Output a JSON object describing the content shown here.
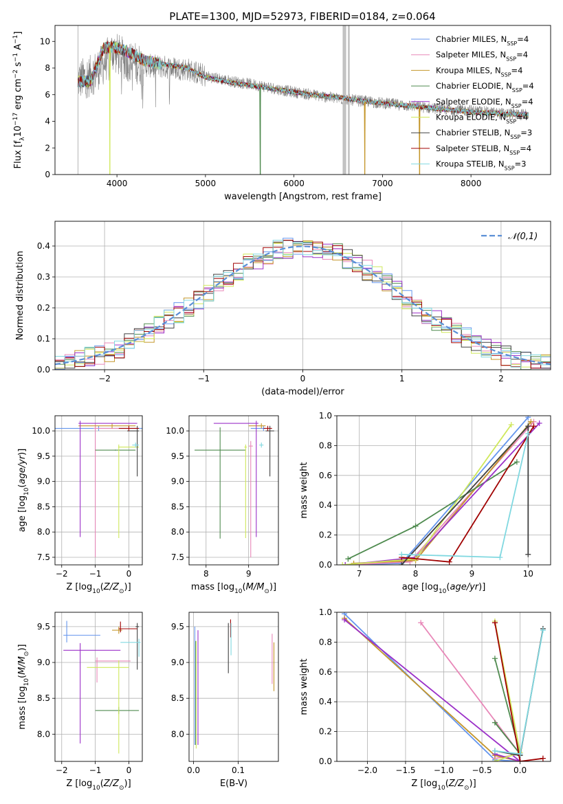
{
  "figure": {
    "title": "PLATE=1300, MJD=52973, FIBERID=0184, z=0.064"
  },
  "colors": {
    "data": "#808080",
    "series": [
      "#6495ed",
      "#e887b8",
      "#c4962a",
      "#4e8a4e",
      "#9b30c8",
      "#cfe85a",
      "#404040",
      "#a00000",
      "#80d8e0"
    ],
    "normal": "#5b8fd6"
  },
  "chart_data": [
    {
      "id": "spectrum",
      "type": "line",
      "xlabel": "wavelength [Angstrom, rest frame]",
      "ylabel": "Flux [f_λ10^-17 erg cm^-2 s^-1 A^-1]",
      "xlim": [
        3300,
        8900
      ],
      "ylim": [
        0,
        11.2
      ],
      "xticks": [
        4000,
        5000,
        6000,
        7000,
        8000
      ],
      "yticks": [
        0,
        2,
        4,
        6,
        8,
        10
      ],
      "grid": false,
      "legend_position": "top-right",
      "legend": [
        {
          "label": "Chabrier MILES, N",
          "sub": "SSP",
          "tail": "=4"
        },
        {
          "label": "Salpeter MILES, N",
          "sub": "SSP",
          "tail": "=4"
        },
        {
          "label": "Kroupa MILES, N",
          "sub": "SSP",
          "tail": "=4"
        },
        {
          "label": "Chabrier ELODIE, N",
          "sub": "SSP",
          "tail": "=4"
        },
        {
          "label": "Salpeter ELODIE, N",
          "sub": "SSP",
          "tail": "=4"
        },
        {
          "label": "Kroupa ELODIE, N",
          "sub": "SSP",
          "tail": "=4"
        },
        {
          "label": "Chabrier STELIB, N",
          "sub": "SSP",
          "tail": "=3"
        },
        {
          "label": "Salpeter STELIB, N",
          "sub": "SSP",
          "tail": "=4"
        },
        {
          "label": "Kroupa STELIB, N",
          "sub": "SSP",
          "tail": "=3"
        }
      ],
      "data_continuum": {
        "x": [
          3560,
          3700,
          3850,
          3950,
          4100,
          4300,
          4500,
          4800,
          5000,
          5300,
          5600,
          5900,
          6200,
          6500,
          6800,
          7100,
          7400,
          7700,
          8000,
          8300,
          8600
        ],
        "y": [
          7.1,
          7.4,
          8.3,
          9.3,
          8.6,
          8.2,
          8.1,
          7.9,
          7.4,
          7.0,
          6.7,
          6.3,
          6.0,
          5.7,
          5.5,
          5.3,
          5.1,
          4.9,
          4.8,
          4.6,
          4.5
        ]
      },
      "model_continuum": {
        "x": [
          3560,
          3700,
          3850,
          3950,
          4100,
          4300,
          4500,
          4800,
          5000,
          5300,
          5600,
          5900,
          6200,
          6500,
          6800,
          7100,
          7400,
          7700,
          8000,
          8300,
          8600
        ],
        "y": [
          7.0,
          7.0,
          9.5,
          9.6,
          9.3,
          8.6,
          8.3,
          8.0,
          7.3,
          6.9,
          6.6,
          6.3,
          6.0,
          5.8,
          5.5,
          5.3,
          5.1,
          4.9,
          4.7,
          4.6,
          4.5
        ]
      },
      "model_gaps": [
        {
          "series": 5,
          "x": 3920
        },
        {
          "series": 3,
          "x": 5620
        },
        {
          "series": 2,
          "x": 6800
        },
        {
          "series": 2,
          "x": 7420
        }
      ]
    },
    {
      "id": "residual_hist",
      "type": "step",
      "xlabel": "(data-model)/error",
      "ylabel": "Normed distribution",
      "xlim": [
        -2.5,
        2.5
      ],
      "ylim": [
        0,
        0.48
      ],
      "xticks": [
        -2,
        -1,
        0,
        1,
        2
      ],
      "yticks": [
        0.0,
        0.1,
        0.2,
        0.3,
        0.4
      ],
      "grid": true,
      "legend_position": "top-right",
      "normal_label": "𝒩(0,1)",
      "bin_width": 0.1
    },
    {
      "id": "age_vs_Z",
      "type": "errorbar",
      "xlabel": "Z [log10(Z/Z⊙)]",
      "ylabel": "age  [log10(age/yr)]",
      "xlim": [
        -2.2,
        0.4
      ],
      "ylim": [
        7.35,
        10.3
      ],
      "xticks": [
        -2,
        -1,
        0
      ],
      "yticks": [
        7.5,
        8.0,
        8.5,
        9.0,
        9.5,
        10.0
      ],
      "grid": true,
      "points": [
        {
          "s": 0,
          "x": -0.9,
          "xerr": [
            1.3,
            1.3
          ],
          "y": 10.05,
          "yerr": [
            0.05,
            0.05
          ]
        },
        {
          "s": 1,
          "x": -1.0,
          "xerr": [
            0.05,
            1.25
          ],
          "y": 10.05,
          "yerr": [
            2.55,
            0.1
          ]
        },
        {
          "s": 2,
          "x": -0.5,
          "xerr": [
            1.0,
            0.7
          ],
          "y": 10.1,
          "yerr": [
            0.05,
            0.05
          ]
        },
        {
          "s": 3,
          "x": -0.4,
          "xerr": [
            0.6,
            0.6
          ],
          "y": 9.62,
          "yerr": [
            0.01,
            0.01
          ]
        },
        {
          "s": 4,
          "x": -1.45,
          "xerr": [
            0.05,
            1.7
          ],
          "y": 10.15,
          "yerr": [
            2.25,
            0.05
          ]
        },
        {
          "s": 5,
          "x": -0.3,
          "xerr": [
            0.02,
            0.6
          ],
          "y": 9.68,
          "yerr": [
            1.8,
            0.05
          ]
        },
        {
          "s": 6,
          "x": 0.25,
          "xerr": [
            0.3,
            0.05
          ],
          "y": 10.0,
          "yerr": [
            0.9,
            0.1
          ]
        },
        {
          "s": 7,
          "x": 0.0,
          "xerr": [
            0.3,
            0.3
          ],
          "y": 10.05,
          "yerr": [
            0.05,
            0.05
          ]
        },
        {
          "s": 8,
          "x": 0.2,
          "xerr": [
            0.1,
            0.1
          ],
          "y": 9.72,
          "yerr": [
            0.05,
            0.05
          ]
        }
      ]
    },
    {
      "id": "age_vs_mass",
      "type": "errorbar",
      "xlabel": "mass [log10(M/M⊙)]",
      "ylabel": "",
      "xlim": [
        7.6,
        9.7
      ],
      "ylim": [
        7.35,
        10.3
      ],
      "xticks": [
        8,
        9
      ],
      "yticks": [
        7.5,
        8.0,
        8.5,
        9.0,
        9.5,
        10.0
      ],
      "grid": true,
      "points": [
        {
          "s": 0,
          "x": 9.35,
          "xerr": [
            0.3,
            0.05
          ],
          "y": 10.05,
          "yerr": [
            0.05,
            0.05
          ]
        },
        {
          "s": 1,
          "x": 9.05,
          "xerr": [
            0.05,
            0.05
          ],
          "y": 9.7,
          "yerr": [
            2.2,
            0.1
          ]
        },
        {
          "s": 2,
          "x": 9.3,
          "xerr": [
            0.3,
            0.1
          ],
          "y": 10.1,
          "yerr": [
            0.05,
            0.05
          ]
        },
        {
          "s": 3,
          "x": 8.33,
          "xerr": [
            0.6,
            0.6
          ],
          "y": 9.62,
          "yerr": [
            1.75,
            0.45
          ]
        },
        {
          "s": 4,
          "x": 9.18,
          "xerr": [
            1.0,
            0.05
          ],
          "y": 10.15,
          "yerr": [
            2.25,
            0.05
          ]
        },
        {
          "s": 5,
          "x": 8.93,
          "xerr": [
            0.03,
            0.03
          ],
          "y": 9.68,
          "yerr": [
            1.8,
            0.05
          ]
        },
        {
          "s": 6,
          "x": 9.5,
          "xerr": [
            0.1,
            0.1
          ],
          "y": 10.0,
          "yerr": [
            0.9,
            0.1
          ]
        },
        {
          "s": 7,
          "x": 9.45,
          "xerr": [
            0.1,
            0.1
          ],
          "y": 10.05,
          "yerr": [
            0.05,
            0.05
          ]
        },
        {
          "s": 8,
          "x": 9.3,
          "xerr": [
            0.05,
            0.05
          ],
          "y": 9.72,
          "yerr": [
            0.05,
            0.05
          ]
        }
      ]
    },
    {
      "id": "weight_vs_age",
      "type": "line",
      "xlabel": "age  [log10(age/yr)]",
      "ylabel": "mass weight",
      "xlim": [
        6.6,
        10.4
      ],
      "ylim": [
        0,
        1.0
      ],
      "xticks": [
        7,
        8,
        9,
        10
      ],
      "yticks": [
        0.0,
        0.2,
        0.4,
        0.6,
        0.8,
        1.0
      ],
      "grid": true,
      "series": [
        {
          "s": 0,
          "x": [
            6.75,
            7.75,
            10.0
          ],
          "y": [
            0.0,
            0.01,
            0.99
          ]
        },
        {
          "s": 1,
          "x": [
            6.75,
            7.9,
            10.1
          ],
          "y": [
            0.0,
            0.02,
            0.96
          ]
        },
        {
          "s": 2,
          "x": [
            6.9,
            8.0,
            10.05
          ],
          "y": [
            0.01,
            0.03,
            0.96
          ]
        },
        {
          "s": 3,
          "x": [
            6.8,
            8.0,
            9.8
          ],
          "y": [
            0.04,
            0.26,
            0.69
          ]
        },
        {
          "s": 4,
          "x": [
            6.75,
            8.0,
            10.2
          ],
          "y": [
            0.0,
            0.05,
            0.95
          ]
        },
        {
          "s": 5,
          "x": [
            6.7,
            8.0,
            9.7
          ],
          "y": [
            0.0,
            0.04,
            0.94
          ]
        },
        {
          "s": 6,
          "x": [
            7.75,
            10.0,
            10.0
          ],
          "y": [
            0.0,
            0.93,
            0.07
          ]
        },
        {
          "s": 7,
          "x": [
            7.75,
            8.6,
            10.1
          ],
          "y": [
            0.05,
            0.02,
            0.93
          ]
        },
        {
          "s": 8,
          "x": [
            7.75,
            9.5,
            10.0
          ],
          "y": [
            0.07,
            0.05,
            0.88
          ]
        }
      ]
    },
    {
      "id": "mass_vs_Z",
      "type": "errorbar",
      "xlabel": "Z [log10(Z/Z⊙)]",
      "ylabel": "mass [log10(M/M⊙)]",
      "xlim": [
        -2.2,
        0.4
      ],
      "ylim": [
        7.62,
        9.7
      ],
      "xticks": [
        -2,
        -1,
        0
      ],
      "yticks": [
        8.0,
        8.5,
        9.0,
        9.5
      ],
      "grid": true,
      "points": [
        {
          "s": 0,
          "x": -1.85,
          "xerr": [
            0.1,
            1.0
          ],
          "y": 9.38,
          "yerr": [
            0.1,
            0.2
          ]
        },
        {
          "s": 1,
          "x": -0.95,
          "xerr": [
            0.05,
            1.0
          ],
          "y": 9.02,
          "yerr": [
            0.3,
            0.05
          ]
        },
        {
          "s": 2,
          "x": -0.3,
          "xerr": [
            0.2,
            0.1
          ],
          "y": 9.45,
          "yerr": [
            0.05,
            0.05
          ]
        },
        {
          "s": 3,
          "x": -0.3,
          "xerr": [
            0.7,
            0.6
          ],
          "y": 8.33,
          "yerr": [
            0.05,
            0.05
          ]
        },
        {
          "s": 4,
          "x": -1.45,
          "xerr": [
            0.5,
            1.2
          ],
          "y": 9.17,
          "yerr": [
            1.3,
            0.1
          ]
        },
        {
          "s": 5,
          "x": -0.3,
          "xerr": [
            0.95,
            0.3
          ],
          "y": 8.93,
          "yerr": [
            1.2,
            0.1
          ]
        },
        {
          "s": 6,
          "x": 0.25,
          "xerr": [
            0.05,
            0.05
          ],
          "y": 9.5,
          "yerr": [
            0.6,
            0.05
          ]
        },
        {
          "s": 7,
          "x": -0.25,
          "xerr": [
            0.05,
            0.5
          ],
          "y": 9.47,
          "yerr": [
            0.05,
            0.1
          ]
        },
        {
          "s": 8,
          "x": 0.3,
          "xerr": [
            0.55,
            0.05
          ],
          "y": 9.28,
          "yerr": [
            0.2,
            0.05
          ]
        }
      ]
    },
    {
      "id": "mass_vs_ebv",
      "type": "errorbar",
      "xlabel": "E(B-V)",
      "ylabel": "",
      "xlim": [
        -0.01,
        0.19
      ],
      "ylim": [
        7.62,
        9.7
      ],
      "xticks": [
        0.0,
        0.1
      ],
      "yticks": [
        8.0,
        8.5,
        9.0,
        9.5
      ],
      "grid": true,
      "points": [
        {
          "s": 0,
          "x": 0.003,
          "xerr": [
            0.0,
            0.0
          ],
          "y": 9.35,
          "yerr": [
            1.5,
            0.15
          ]
        },
        {
          "s": 1,
          "x": 0.176,
          "xerr": [
            0.0,
            0.0
          ],
          "y": 9.0,
          "yerr": [
            0.3,
            0.4
          ]
        },
        {
          "s": 2,
          "x": 0.18,
          "xerr": [
            0.0,
            0.0
          ],
          "y": 9.0,
          "yerr": [
            0.4,
            0.28
          ]
        },
        {
          "s": 3,
          "x": 0.005,
          "xerr": [
            0.0,
            0.0
          ],
          "y": 8.5,
          "yerr": [
            0.65,
            0.8
          ]
        },
        {
          "s": 4,
          "x": 0.01,
          "xerr": [
            0.0,
            0.0
          ],
          "y": 9.3,
          "yerr": [
            1.45,
            0.15
          ]
        },
        {
          "s": 5,
          "x": 0.006,
          "xerr": [
            0.0,
            0.0
          ],
          "y": 8.6,
          "yerr": [
            0.8,
            0.7
          ]
        },
        {
          "s": 6,
          "x": 0.078,
          "xerr": [
            0.0,
            0.0
          ],
          "y": 9.2,
          "yerr": [
            0.35,
            0.35
          ]
        },
        {
          "s": 7,
          "x": 0.083,
          "xerr": [
            0.0,
            0.0
          ],
          "y": 9.45,
          "yerr": [
            0.1,
            0.15
          ]
        },
        {
          "s": 8,
          "x": 0.084,
          "xerr": [
            0.0,
            0.0
          ],
          "y": 9.3,
          "yerr": [
            0.2,
            0.25
          ]
        }
      ]
    },
    {
      "id": "weight_vs_Z",
      "type": "line",
      "xlabel": "Z [log10(Z/Z⊙)]",
      "ylabel": "mass weight",
      "xlim": [
        -2.4,
        0.4
      ],
      "ylim": [
        0,
        1.0
      ],
      "xticks": [
        -2.0,
        -1.5,
        -1.0,
        -0.5,
        0.0
      ],
      "yticks": [
        0.0,
        0.2,
        0.4,
        0.6,
        0.8,
        1.0
      ],
      "grid": true,
      "series": [
        {
          "s": 0,
          "x": [
            -2.3,
            -0.33,
            0.0
          ],
          "y": [
            0.99,
            0.01,
            0.0
          ]
        },
        {
          "s": 1,
          "x": [
            -1.3,
            0.0,
            -0.33
          ],
          "y": [
            0.93,
            0.05,
            0.02
          ]
        },
        {
          "s": 2,
          "x": [
            -2.3,
            -0.33,
            0.0
          ],
          "y": [
            0.96,
            0.04,
            0.0
          ]
        },
        {
          "s": 3,
          "x": [
            -0.33,
            0.0,
            -0.33
          ],
          "y": [
            0.69,
            0.05,
            0.26
          ]
        },
        {
          "s": 4,
          "x": [
            -2.3,
            0.0,
            -0.33
          ],
          "y": [
            0.95,
            0.0,
            0.05
          ]
        },
        {
          "s": 5,
          "x": [
            -0.33,
            0.0,
            -0.33
          ],
          "y": [
            0.94,
            0.06,
            0.0
          ]
        },
        {
          "s": 6,
          "x": [
            0.3,
            0.0,
            -0.33
          ],
          "y": [
            0.89,
            0.04,
            0.07
          ]
        },
        {
          "s": 7,
          "x": [
            -0.33,
            0.0,
            0.3
          ],
          "y": [
            0.93,
            0.0,
            0.02
          ]
        },
        {
          "s": 8,
          "x": [
            0.3,
            0.0,
            -0.33
          ],
          "y": [
            0.88,
            0.05,
            0.07
          ]
        }
      ]
    }
  ]
}
